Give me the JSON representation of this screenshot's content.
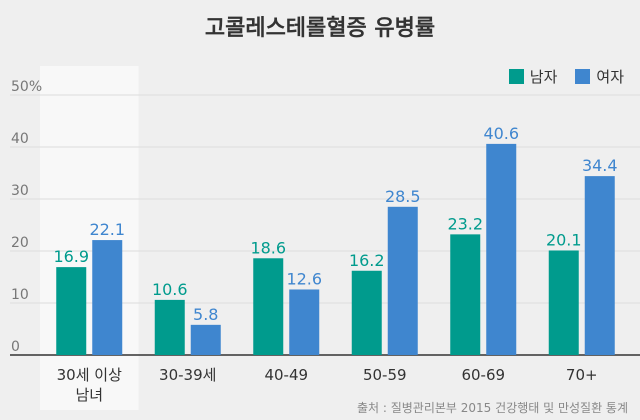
{
  "title": "고콜레스테롤혈증 유병률",
  "source": "출처 : 질병관리본부 2015 건강행태 및 만성질환 통계",
  "colors": {
    "male": "#009b8d",
    "female": "#3f86cf",
    "highlight": "#f8f8f8",
    "grid": "#dcdcdc"
  },
  "chart_data": {
    "type": "bar",
    "categories": [
      "30세 이상\n남녀",
      "30-39세",
      "40-49",
      "50-59",
      "60-69",
      "70+"
    ],
    "series": [
      {
        "name": "남자",
        "values": [
          16.9,
          10.6,
          18.6,
          16.2,
          23.2,
          20.1
        ]
      },
      {
        "name": "여자",
        "values": [
          22.1,
          5.8,
          12.6,
          28.5,
          40.6,
          34.4
        ]
      }
    ],
    "yticks": [
      "0",
      "10",
      "20",
      "30",
      "40",
      "50%"
    ],
    "ylim": [
      0,
      50
    ],
    "grid": true,
    "legend_position": "top-right",
    "highlight_category": "30세 이상\n남녀"
  }
}
